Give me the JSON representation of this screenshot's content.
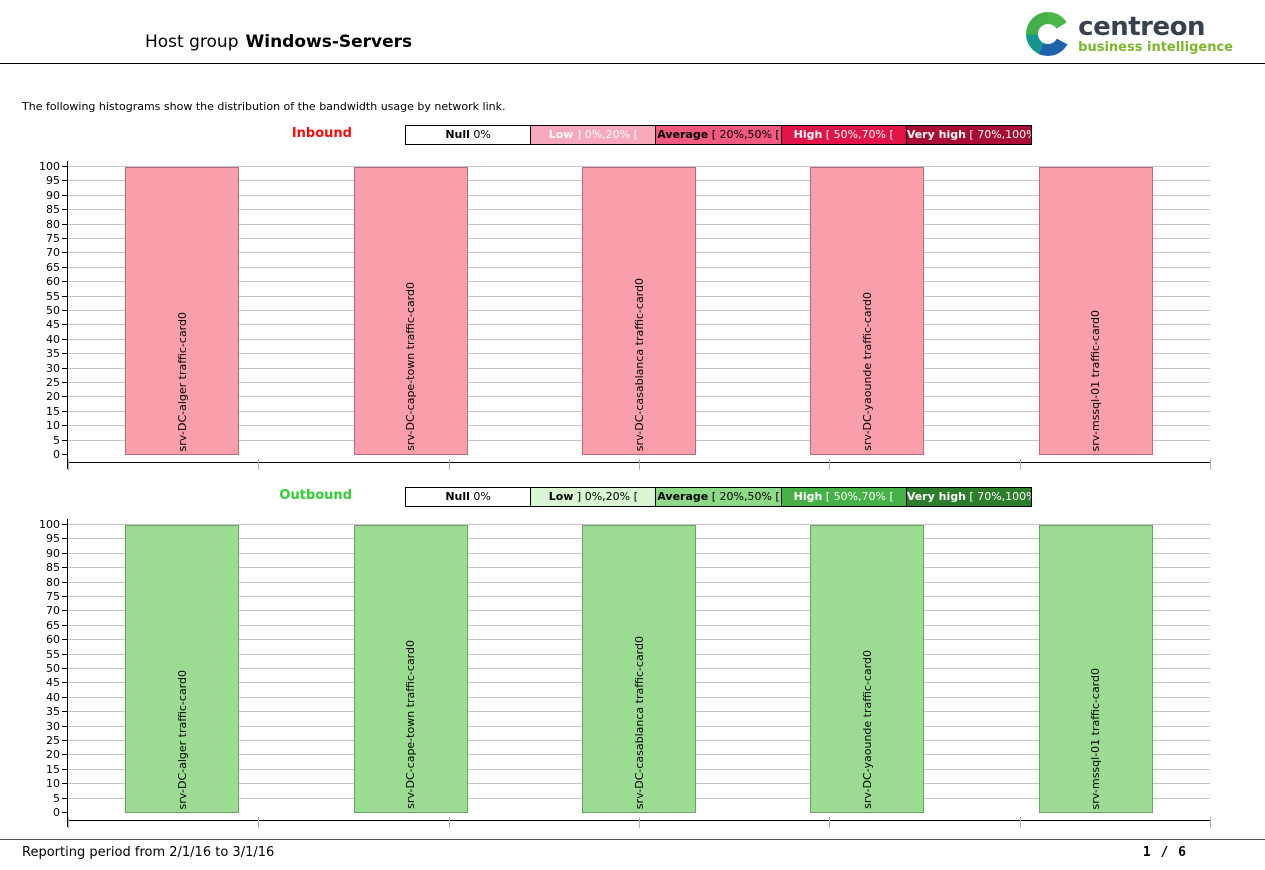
{
  "header": {
    "title_prefix": "Host group",
    "title_bold": "Windows-Servers",
    "logo": {
      "brand": "centreon",
      "subtitle": "business intelligence",
      "brand_color": "#37424e",
      "subtitle_color": "#7db52e"
    }
  },
  "intro": "The following histograms show the distribution of the bandwidth usage by network link.",
  "chart_data": [
    {
      "type": "bar",
      "direction_label": "Inbound",
      "direction_color": "#f20d0d",
      "legend": [
        {
          "name": "Null",
          "range": "0%",
          "bg": "#ffffff",
          "fg": "#000000"
        },
        {
          "name": "Low",
          "range": "] 0%,20% [",
          "bg": "#f7a8ba",
          "fg": "#ffffff"
        },
        {
          "name": "Average",
          "range": "[ 20%,50% [",
          "bg": "#f2597e",
          "fg": "#000000"
        },
        {
          "name": "High",
          "range": "[ 50%,70% [",
          "bg": "#e21346",
          "fg": "#ffffff"
        },
        {
          "name": "Very high",
          "range": "[ 70%,100% ]",
          "bg": "#a90d36",
          "fg": "#ffffff"
        }
      ],
      "categories": [
        "srv-DC-alger traffic-card0",
        "srv-DC-cape-town traffic-card0",
        "srv-DC-casablanca traffic-card0",
        "srv-DC-yaounde traffic-card0",
        "srv-mssql-01 traffic-card0"
      ],
      "values": [
        100,
        100,
        100,
        100,
        100
      ],
      "bar_color": "#f99fac",
      "bar_border": "#b56b79",
      "title": "",
      "xlabel": "",
      "ylabel": "",
      "ylim": [
        0,
        100
      ],
      "ytick_step": 5,
      "grid": true,
      "legend_position": "top"
    },
    {
      "type": "bar",
      "direction_label": "Outbound",
      "direction_color": "#33cc33",
      "legend": [
        {
          "name": "Null",
          "range": "0%",
          "bg": "#ffffff",
          "fg": "#000000"
        },
        {
          "name": "Low",
          "range": "] 0%,20% [",
          "bg": "#daf5d2",
          "fg": "#000000"
        },
        {
          "name": "Average",
          "range": "[ 20%,50% [",
          "bg": "#8ed987",
          "fg": "#000000"
        },
        {
          "name": "High",
          "range": "[ 50%,70% [",
          "bg": "#45b045",
          "fg": "#ffffff"
        },
        {
          "name": "Very high",
          "range": "[ 70%,100% ]",
          "bg": "#2c7e2c",
          "fg": "#ffffff"
        }
      ],
      "categories": [
        "srv-DC-alger traffic-card0",
        "srv-DC-cape-town traffic-card0",
        "srv-DC-casablanca traffic-card0",
        "srv-DC-yaounde traffic-card0",
        "srv-mssql-01 traffic-card0"
      ],
      "values": [
        100,
        100,
        100,
        100,
        100
      ],
      "bar_color": "#9cdb92",
      "bar_border": "#6ba265",
      "title": "",
      "xlabel": "",
      "ylabel": "",
      "ylim": [
        0,
        100
      ],
      "ytick_step": 5,
      "grid": true,
      "legend_position": "top"
    }
  ],
  "footer": {
    "period": "Reporting period from 2/1/16 to 3/1/16",
    "page": "1 / 6"
  }
}
